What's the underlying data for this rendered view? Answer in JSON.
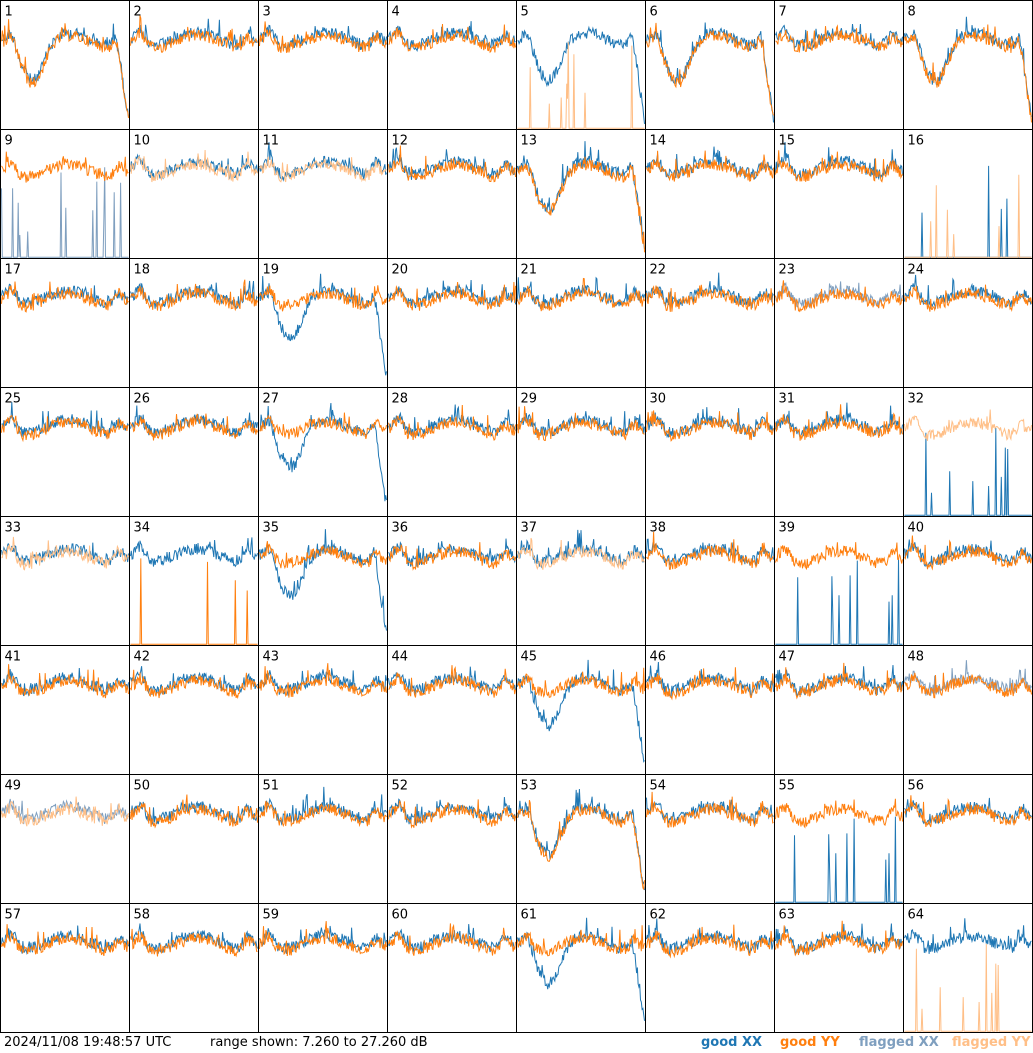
{
  "chart_data": {
    "type": "line",
    "layout": "8x8 small multiples",
    "x_axis": "frequency channels (unlabeled)",
    "y_range_db": [
      7.26,
      27.26
    ],
    "panels": [
      1,
      2,
      3,
      4,
      5,
      6,
      7,
      8,
      9,
      10,
      11,
      12,
      13,
      14,
      15,
      16,
      17,
      18,
      19,
      20,
      21,
      22,
      23,
      24,
      25,
      26,
      27,
      28,
      29,
      30,
      31,
      32,
      33,
      34,
      35,
      36,
      37,
      38,
      39,
      40,
      41,
      42,
      43,
      44,
      45,
      46,
      47,
      48,
      49,
      50,
      51,
      52,
      53,
      54,
      55,
      56,
      57,
      58,
      59,
      60,
      61,
      62,
      63,
      64
    ],
    "panel_status": {
      "xx_flagged": [
        9,
        23,
        48,
        49
      ],
      "yy_flagged": [
        5,
        10,
        11,
        16,
        32,
        33,
        37,
        49,
        64
      ],
      "xx_sparse": [
        9,
        16,
        32,
        39,
        55
      ],
      "yy_sparse": [
        5,
        16,
        34,
        64
      ],
      "xx_roll": [
        1,
        5,
        6,
        8,
        13,
        19,
        27,
        35,
        45,
        53,
        61
      ],
      "yy_roll": [
        1,
        6,
        8,
        13,
        53
      ]
    },
    "series": [
      {
        "name": "good XX",
        "color": "#1f77b4"
      },
      {
        "name": "good YY",
        "color": "#ff7f0e"
      },
      {
        "name": "flagged XX",
        "color": "#7f9fbf"
      },
      {
        "name": "flagged YY",
        "color": "#ffbf87"
      }
    ]
  },
  "footer": {
    "timestamp": "2024/11/08 19:48:57 UTC",
    "range": "range shown: 7.260 to 27.260 dB"
  },
  "legend": {
    "good_xx": "good XX",
    "good_yy": "good YY",
    "flagged_xx": "flagged XX",
    "flagged_yy": "flagged YY"
  },
  "colors": {
    "good_xx": "#1f77b4",
    "good_yy": "#ff7f0e",
    "flagged_xx": "#7f9fbf",
    "flagged_yy": "#ffbf87"
  }
}
